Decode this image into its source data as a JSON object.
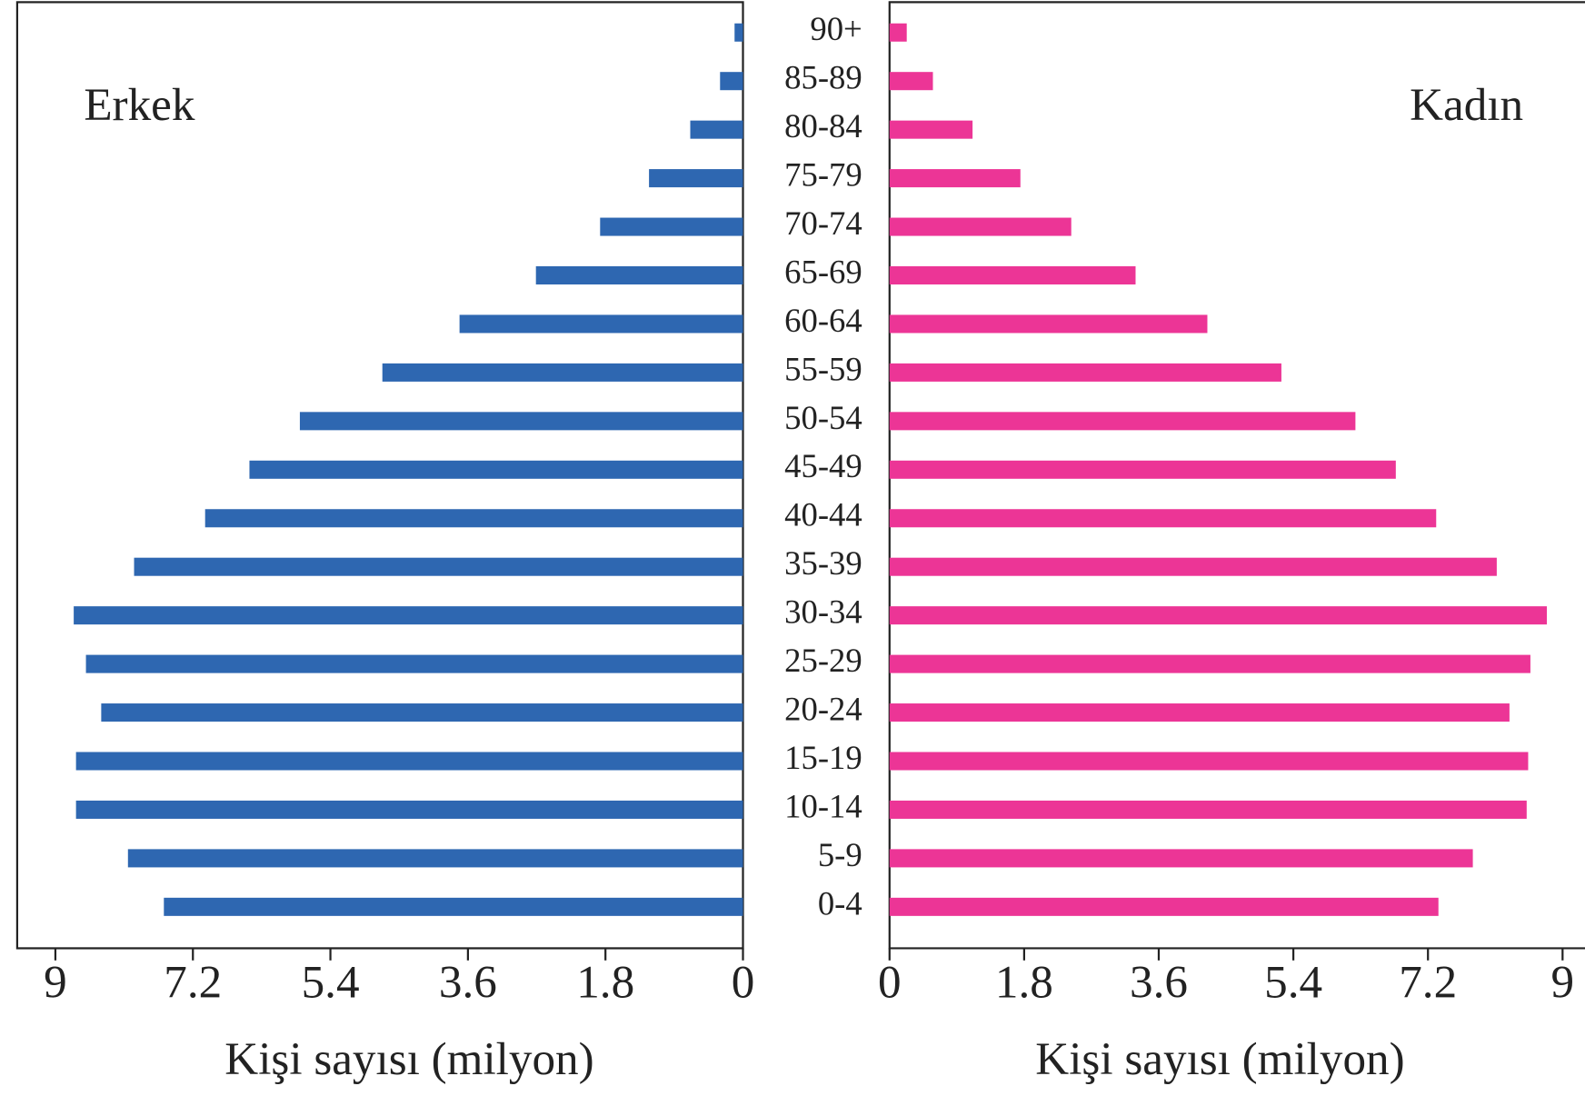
{
  "chart_data": {
    "type": "pyramid",
    "categories": [
      "0-4",
      "5-9",
      "10-14",
      "15-19",
      "20-24",
      "25-29",
      "30-34",
      "35-39",
      "40-44",
      "45-49",
      "50-54",
      "55-59",
      "60-64",
      "65-69",
      "70-74",
      "75-79",
      "80-84",
      "85-89",
      "90+"
    ],
    "series": [
      {
        "name": "Erkek",
        "color": "#2e67b1",
        "xlabel": "Kişi sayısı (milyon)",
        "xlim": [
          9.5,
          0
        ],
        "xticks": [
          9,
          7.2,
          5.4,
          3.6,
          1.8,
          0
        ],
        "values": [
          7.58,
          8.05,
          8.73,
          8.73,
          8.4,
          8.6,
          8.76,
          7.97,
          7.04,
          6.46,
          5.8,
          4.72,
          3.71,
          2.71,
          1.87,
          1.23,
          0.69,
          0.3,
          0.11
        ]
      },
      {
        "name": "Kadın",
        "color": "#ec3596",
        "xlabel": "Kişi sayısı (milyon)",
        "xlim": [
          0,
          9.3
        ],
        "xticks": [
          0,
          1.8,
          3.6,
          5.4,
          7.2,
          9
        ],
        "values": [
          7.34,
          7.8,
          8.52,
          8.54,
          8.29,
          8.57,
          8.79,
          8.12,
          7.31,
          6.77,
          6.23,
          5.24,
          4.25,
          3.29,
          2.43,
          1.75,
          1.11,
          0.58,
          0.23
        ]
      }
    ]
  }
}
